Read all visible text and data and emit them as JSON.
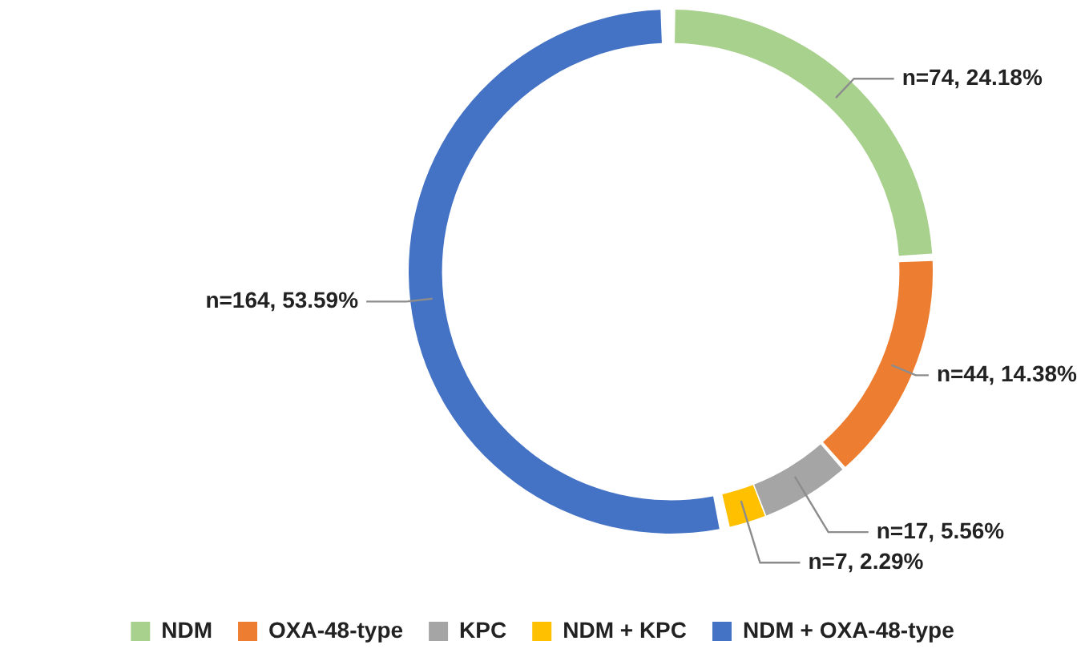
{
  "chart_data": {
    "type": "donut",
    "categories": [
      "NDM",
      "OXA-48-type",
      "KPC",
      "NDM + KPC",
      "NDM + OXA-48-type"
    ],
    "values": [
      74,
      44,
      17,
      7,
      164
    ],
    "colors": [
      "#a9d18e",
      "#ed7d31",
      "#a5a5a5",
      "#ffc000",
      "#4472c4"
    ],
    "value_labels": [
      "n=74, 24.18%",
      "n=44, 14.38%",
      "n=17, 5.56%",
      "n=7, 2.29%",
      "n=164, 53.59%"
    ],
    "legend": "bottom"
  }
}
